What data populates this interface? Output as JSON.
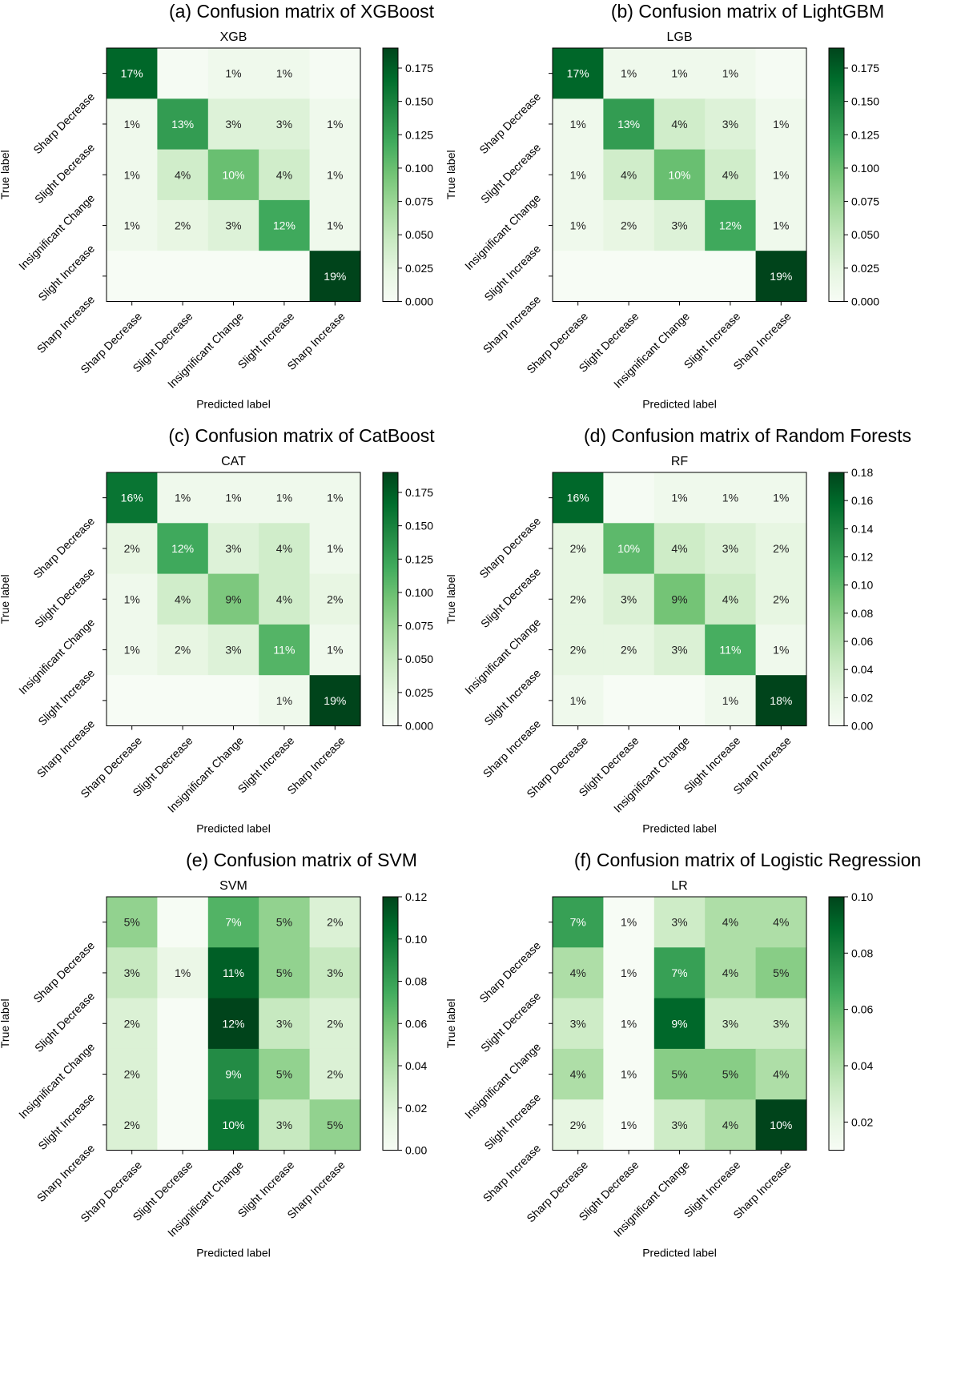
{
  "figure": {
    "class_labels": [
      "Sharp Decrease",
      "Slight Decrease",
      "Insignificant Change",
      "Slight Increase",
      "Sharp Increase"
    ],
    "xlabel": "Predicted label",
    "ylabel": "True label",
    "colormap": "Greens",
    "colors": {
      "low": "#f7fcf5",
      "high": "#00441b"
    }
  },
  "chart_data": [
    {
      "type": "heatmap",
      "panel_title": "(a) Confusion matrix of  XGBoost",
      "title": "XGB",
      "xlabel": "Predicted label",
      "ylabel": "True label",
      "categories": [
        "Sharp Decrease",
        "Slight Decrease",
        "Insignificant Change",
        "Slight Increase",
        "Sharp Increase"
      ],
      "vmin": 0,
      "vmax": 0.19,
      "colorbar_ticks": [
        0.0,
        0.025,
        0.05,
        0.075,
        0.1,
        0.125,
        0.15,
        0.175
      ],
      "colorbar_tick_labels": [
        "0.000",
        "0.025",
        "0.050",
        "0.075",
        "0.100",
        "0.125",
        "0.150",
        "0.175"
      ],
      "values": [
        [
          0.17,
          0.002,
          0.01,
          0.01,
          0.002
        ],
        [
          0.01,
          0.13,
          0.03,
          0.03,
          0.01
        ],
        [
          0.01,
          0.04,
          0.1,
          0.04,
          0.01
        ],
        [
          0.01,
          0.02,
          0.03,
          0.12,
          0.01
        ],
        [
          0.0,
          0.0,
          0.0,
          0.0,
          0.19
        ]
      ],
      "cell_labels": [
        [
          "17%",
          "",
          "1%",
          "1%",
          ""
        ],
        [
          "1%",
          "13%",
          "3%",
          "3%",
          "1%"
        ],
        [
          "1%",
          "4%",
          "10%",
          "4%",
          "1%"
        ],
        [
          "1%",
          "2%",
          "3%",
          "12%",
          "1%"
        ],
        [
          "",
          "",
          "",
          "",
          "19%"
        ]
      ]
    },
    {
      "type": "heatmap",
      "panel_title": "(b) Confusion matrix of  LightGBM",
      "title": "LGB",
      "xlabel": "Predicted label",
      "ylabel": "True label",
      "categories": [
        "Sharp Decrease",
        "Slight Decrease",
        "Insignificant Change",
        "Slight Increase",
        "Sharp Increase"
      ],
      "vmin": 0,
      "vmax": 0.19,
      "colorbar_ticks": [
        0.0,
        0.025,
        0.05,
        0.075,
        0.1,
        0.125,
        0.15,
        0.175
      ],
      "colorbar_tick_labels": [
        "0.000",
        "0.025",
        "0.050",
        "0.075",
        "0.100",
        "0.125",
        "0.150",
        "0.175"
      ],
      "values": [
        [
          0.17,
          0.01,
          0.01,
          0.01,
          0.002
        ],
        [
          0.01,
          0.13,
          0.04,
          0.03,
          0.01
        ],
        [
          0.01,
          0.04,
          0.1,
          0.04,
          0.01
        ],
        [
          0.01,
          0.02,
          0.03,
          0.12,
          0.01
        ],
        [
          0.0,
          0.0,
          0.0,
          0.0,
          0.19
        ]
      ],
      "cell_labels": [
        [
          "17%",
          "1%",
          "1%",
          "1%",
          ""
        ],
        [
          "1%",
          "13%",
          "4%",
          "3%",
          "1%"
        ],
        [
          "1%",
          "4%",
          "10%",
          "4%",
          "1%"
        ],
        [
          "1%",
          "2%",
          "3%",
          "12%",
          "1%"
        ],
        [
          "",
          "",
          "",
          "",
          "19%"
        ]
      ]
    },
    {
      "type": "heatmap",
      "panel_title": "(c) Confusion matrix of  CatBoost",
      "title": "CAT",
      "xlabel": "Predicted label",
      "ylabel": "True label",
      "categories": [
        "Sharp Decrease",
        "Slight Decrease",
        "Insignificant Change",
        "Slight Increase",
        "Sharp Increase"
      ],
      "vmin": 0,
      "vmax": 0.19,
      "colorbar_ticks": [
        0.0,
        0.025,
        0.05,
        0.075,
        0.1,
        0.125,
        0.15,
        0.175
      ],
      "colorbar_tick_labels": [
        "0.000",
        "0.025",
        "0.050",
        "0.075",
        "0.100",
        "0.125",
        "0.150",
        "0.175"
      ],
      "values": [
        [
          0.16,
          0.01,
          0.01,
          0.01,
          0.01
        ],
        [
          0.02,
          0.12,
          0.03,
          0.04,
          0.01
        ],
        [
          0.01,
          0.04,
          0.09,
          0.04,
          0.02
        ],
        [
          0.01,
          0.02,
          0.03,
          0.11,
          0.01
        ],
        [
          0.0,
          0.0,
          0.0,
          0.01,
          0.19
        ]
      ],
      "cell_labels": [
        [
          "16%",
          "1%",
          "1%",
          "1%",
          "1%"
        ],
        [
          "2%",
          "12%",
          "3%",
          "4%",
          "1%"
        ],
        [
          "1%",
          "4%",
          "9%",
          "4%",
          "2%"
        ],
        [
          "1%",
          "2%",
          "3%",
          "11%",
          "1%"
        ],
        [
          "",
          "",
          "",
          "1%",
          "19%"
        ]
      ]
    },
    {
      "type": "heatmap",
      "panel_title": "(d) Confusion matrix of  Random Forests",
      "title": "RF",
      "xlabel": "Predicted label",
      "ylabel": "True label",
      "categories": [
        "Sharp Decrease",
        "Slight Decrease",
        "Insignificant Change",
        "Slight Increase",
        "Sharp Increase"
      ],
      "vmin": 0,
      "vmax": 0.18,
      "colorbar_ticks": [
        0.0,
        0.02,
        0.04,
        0.06,
        0.08,
        0.1,
        0.12,
        0.14,
        0.16,
        0.18
      ],
      "colorbar_tick_labels": [
        "0.00",
        "0.02",
        "0.04",
        "0.06",
        "0.08",
        "0.10",
        "0.12",
        "0.14",
        "0.16",
        "0.18"
      ],
      "values": [
        [
          0.16,
          0.002,
          0.01,
          0.01,
          0.01
        ],
        [
          0.02,
          0.1,
          0.04,
          0.03,
          0.02
        ],
        [
          0.02,
          0.03,
          0.09,
          0.04,
          0.02
        ],
        [
          0.02,
          0.02,
          0.03,
          0.11,
          0.01
        ],
        [
          0.01,
          0.0,
          0.0,
          0.01,
          0.18
        ]
      ],
      "cell_labels": [
        [
          "16%",
          "",
          "1%",
          "1%",
          "1%"
        ],
        [
          "2%",
          "10%",
          "4%",
          "3%",
          "2%"
        ],
        [
          "2%",
          "3%",
          "9%",
          "4%",
          "2%"
        ],
        [
          "2%",
          "2%",
          "3%",
          "11%",
          "1%"
        ],
        [
          "1%",
          "",
          "",
          "1%",
          "18%"
        ]
      ]
    },
    {
      "type": "heatmap",
      "panel_title": "(e) Confusion matrix of  SVM",
      "title": "SVM",
      "xlabel": "Predicted label",
      "ylabel": "True label",
      "categories": [
        "Sharp Decrease",
        "Slight Decrease",
        "Insignificant Change",
        "Slight Increase",
        "Sharp Increase"
      ],
      "vmin": 0,
      "vmax": 0.12,
      "colorbar_ticks": [
        0.0,
        0.02,
        0.04,
        0.06,
        0.08,
        0.1,
        0.12
      ],
      "colorbar_tick_labels": [
        "0.00",
        "0.02",
        "0.04",
        "0.06",
        "0.08",
        "0.10",
        "0.12"
      ],
      "values": [
        [
          0.05,
          0.001,
          0.07,
          0.05,
          0.02
        ],
        [
          0.03,
          0.01,
          0.11,
          0.05,
          0.03
        ],
        [
          0.02,
          0.0,
          0.12,
          0.03,
          0.02
        ],
        [
          0.02,
          0.0,
          0.09,
          0.05,
          0.02
        ],
        [
          0.02,
          0.0,
          0.1,
          0.03,
          0.05
        ]
      ],
      "cell_labels": [
        [
          "5%",
          "",
          "7%",
          "5%",
          "2%"
        ],
        [
          "3%",
          "1%",
          "11%",
          "5%",
          "3%"
        ],
        [
          "2%",
          "",
          "12%",
          "3%",
          "2%"
        ],
        [
          "2%",
          "",
          "9%",
          "5%",
          "2%"
        ],
        [
          "2%",
          "",
          "10%",
          "3%",
          "5%"
        ]
      ]
    },
    {
      "type": "heatmap",
      "panel_title": "(f) Confusion matrix of  Logistic Regression",
      "title": "LR",
      "xlabel": "Predicted label",
      "ylabel": "True label",
      "categories": [
        "Sharp Decrease",
        "Slight Decrease",
        "Insignificant Change",
        "Slight Increase",
        "Sharp Increase"
      ],
      "vmin": 0.01,
      "vmax": 0.1,
      "colorbar_ticks": [
        0.02,
        0.04,
        0.06,
        0.08,
        0.1
      ],
      "colorbar_tick_labels": [
        "0.02",
        "0.04",
        "0.06",
        "0.08",
        "0.10"
      ],
      "values": [
        [
          0.07,
          0.01,
          0.03,
          0.04,
          0.04
        ],
        [
          0.04,
          0.01,
          0.07,
          0.04,
          0.05
        ],
        [
          0.03,
          0.01,
          0.09,
          0.03,
          0.03
        ],
        [
          0.04,
          0.01,
          0.05,
          0.05,
          0.04
        ],
        [
          0.02,
          0.01,
          0.03,
          0.04,
          0.1
        ]
      ],
      "cell_labels": [
        [
          "7%",
          "1%",
          "3%",
          "4%",
          "4%"
        ],
        [
          "4%",
          "1%",
          "7%",
          "4%",
          "5%"
        ],
        [
          "3%",
          "1%",
          "9%",
          "3%",
          "3%"
        ],
        [
          "4%",
          "1%",
          "5%",
          "5%",
          "4%"
        ],
        [
          "2%",
          "1%",
          "3%",
          "4%",
          "10%"
        ]
      ]
    }
  ]
}
